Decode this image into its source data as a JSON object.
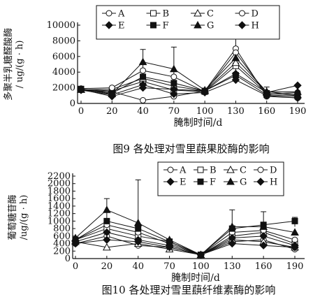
{
  "chart_data": [
    {
      "type": "line",
      "title": "",
      "caption": "图9  各处理对雪里蕻果胶酶的影响",
      "xlabel": "腌制时间/d",
      "ylabel": [
        "多聚半乳糖醛酸酶",
        "/ ug/(g · h)"
      ],
      "categories": [
        "0",
        "20",
        "40",
        "70",
        "100",
        "130",
        "160",
        "190"
      ],
      "yticks": [
        0,
        2000,
        4000,
        6000,
        8000,
        10000
      ],
      "ylim": [
        0,
        10000
      ],
      "series": [
        {
          "name": "A",
          "marker": "circle-open",
          "values": [
            1700,
            1500,
            400,
            900,
            1600,
            7000,
            900,
            700
          ]
        },
        {
          "name": "B",
          "marker": "square-open",
          "values": [
            1800,
            1600,
            2800,
            1700,
            1500,
            4800,
            1300,
            1000
          ]
        },
        {
          "name": "C",
          "marker": "triangle-open",
          "values": [
            1750,
            1800,
            3200,
            2200,
            1600,
            5200,
            1500,
            1100
          ]
        },
        {
          "name": "D",
          "marker": "circle-open",
          "values": [
            1900,
            2000,
            4200,
            3400,
            1500,
            6500,
            1200,
            1400
          ]
        },
        {
          "name": "E",
          "marker": "diamond-filled",
          "values": [
            1800,
            900,
            2000,
            1800,
            1600,
            3800,
            1400,
            2300
          ]
        },
        {
          "name": "F",
          "marker": "square-filled",
          "values": [
            1850,
            1300,
            3400,
            2600,
            1600,
            3600,
            1100,
            900
          ]
        },
        {
          "name": "G",
          "marker": "triangle-filled",
          "values": [
            1800,
            1200,
            5300,
            4400,
            1700,
            5800,
            1500,
            1500
          ]
        },
        {
          "name": "H",
          "marker": "diamond-filled",
          "values": [
            1700,
            1100,
            2400,
            1200,
            1400,
            3000,
            1000,
            700
          ]
        }
      ],
      "errorbars": [
        {
          "x": "40",
          "high": 6900,
          "low": 3800
        },
        {
          "x": "70",
          "high": 7200,
          "low": 1600
        },
        {
          "x": "130",
          "high": 9800,
          "low": 3800
        },
        {
          "x": "160",
          "high": 2100,
          "low": 700
        }
      ],
      "legend": [
        "A",
        "B",
        "C",
        "D",
        "E",
        "F",
        "G",
        "H"
      ]
    },
    {
      "type": "line",
      "title": "",
      "caption": "图10  各处理对雪里蕻纤维素酶的影响",
      "xlabel": "腌制时间/d",
      "ylabel": [
        "葡萄糖苷酶",
        "/ug/(g · h)"
      ],
      "categories": [
        "0",
        "20",
        "40",
        "70",
        "100",
        "130",
        "160",
        "190"
      ],
      "yticks": [
        0,
        200,
        400,
        600,
        800,
        1000,
        1200,
        1400,
        1600,
        1800,
        2000,
        2200
      ],
      "ylim": [
        0,
        2200
      ],
      "series": [
        {
          "name": "A",
          "marker": "circle-open",
          "values": [
            400,
            600,
            350,
            300,
            100,
            450,
            500,
            250
          ]
        },
        {
          "name": "B",
          "marker": "square-open",
          "values": [
            500,
            800,
            600,
            450,
            100,
            600,
            700,
            400
          ]
        },
        {
          "name": "C",
          "marker": "triangle-open",
          "values": [
            450,
            300,
            400,
            250,
            100,
            500,
            450,
            300
          ]
        },
        {
          "name": "D",
          "marker": "circle-open",
          "values": [
            500,
            900,
            700,
            400,
            100,
            700,
            750,
            500
          ]
        },
        {
          "name": "E",
          "marker": "diamond-filled",
          "values": [
            450,
            700,
            500,
            350,
            100,
            550,
            600,
            350
          ]
        },
        {
          "name": "F",
          "marker": "square-filled",
          "values": [
            500,
            1000,
            800,
            450,
            100,
            800,
            900,
            1000
          ]
        },
        {
          "name": "G",
          "marker": "triangle-filled",
          "values": [
            550,
            1300,
            950,
            500,
            100,
            850,
            850,
            700
          ]
        },
        {
          "name": "H",
          "marker": "diamond-filled",
          "values": [
            400,
            500,
            450,
            300,
            100,
            400,
            350,
            300
          ]
        }
      ],
      "errorbars": [
        {
          "x": "20",
          "high": 1600,
          "low": 1000
        },
        {
          "x": "40",
          "high": 2100,
          "low": 600
        },
        {
          "x": "130",
          "high": 1300,
          "low": 400
        },
        {
          "x": "160",
          "high": 1250,
          "low": 500
        },
        {
          "x": "190",
          "high": 1100,
          "low": 850
        }
      ],
      "legend": [
        "A",
        "B",
        "C",
        "D",
        "E",
        "F",
        "G",
        "H"
      ]
    }
  ]
}
